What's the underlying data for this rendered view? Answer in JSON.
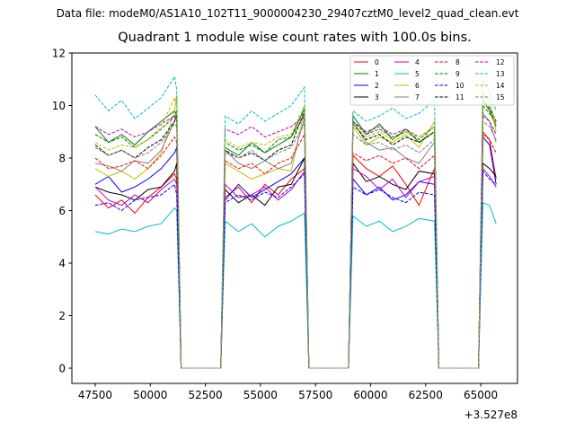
{
  "suptitle": "Data file: modeM0/AS1A10_102T11_9000004230_29407cztM0_level2_quad_clean.evt",
  "chart_data": {
    "type": "line",
    "title": "Quadrant 1 module wise count rates with 100.0s bins.",
    "xlabel": "",
    "ylabel": "",
    "x_offset_label": "+3.527e8",
    "xlim": [
      46440,
      66670
    ],
    "ylim": [
      -0.58,
      12.0
    ],
    "xticks": [
      47500,
      50000,
      52500,
      55000,
      57500,
      60000,
      62500,
      65000
    ],
    "yticks": [
      0,
      2,
      4,
      6,
      8,
      10,
      12
    ],
    "grid": false,
    "legend_placement": "top-right",
    "legend_columns": 4,
    "x": [
      47500,
      48100,
      48700,
      49300,
      49900,
      50500,
      51100,
      51200,
      51400,
      53200,
      53400,
      54000,
      54600,
      55200,
      55800,
      56400,
      57000,
      57200,
      59000,
      59200,
      59800,
      60400,
      61000,
      61600,
      62200,
      62900,
      63100,
      64900,
      65100,
      65400,
      65700
    ],
    "series": [
      {
        "name": "0",
        "color": "#ff0000",
        "dash": false,
        "values": [
          6.6,
          6.1,
          6.4,
          5.9,
          6.5,
          6.9,
          7.4,
          7.2,
          0,
          0,
          6.5,
          6.9,
          6.3,
          7.0,
          6.6,
          7.2,
          7.6,
          0,
          0,
          8.1,
          7.6,
          7.3,
          7.7,
          7.0,
          6.2,
          7.6,
          0,
          0,
          9.0,
          8.7,
          7.2
        ]
      },
      {
        "name": "1",
        "color": "#008000",
        "dash": false,
        "values": [
          9.2,
          8.6,
          8.9,
          8.5,
          9.0,
          9.4,
          9.8,
          9.6,
          0,
          0,
          8.4,
          8.1,
          8.6,
          8.2,
          8.5,
          8.8,
          9.9,
          0,
          0,
          9.6,
          8.9,
          9.3,
          8.7,
          9.1,
          8.6,
          9.0,
          0,
          0,
          10.2,
          9.8,
          9.2
        ]
      },
      {
        "name": "2",
        "color": "#0000ff",
        "dash": false,
        "values": [
          7.0,
          7.3,
          6.7,
          6.9,
          7.2,
          7.6,
          8.2,
          8.4,
          0,
          0,
          6.4,
          7.0,
          6.5,
          6.8,
          7.1,
          7.4,
          8.0,
          0,
          0,
          7.2,
          6.6,
          6.9,
          6.4,
          6.6,
          7.1,
          7.0,
          0,
          0,
          8.8,
          8.5,
          7.0
        ]
      },
      {
        "name": "3",
        "color": "#000000",
        "dash": false,
        "values": [
          6.9,
          6.7,
          6.6,
          6.4,
          6.8,
          6.9,
          7.5,
          7.8,
          0,
          0,
          6.8,
          6.3,
          6.6,
          6.2,
          6.9,
          7.0,
          8.0,
          0,
          0,
          7.8,
          7.1,
          7.3,
          7.0,
          6.8,
          7.5,
          7.4,
          0,
          0,
          7.8,
          7.6,
          7.3
        ]
      },
      {
        "name": "4",
        "color": "#bf00bf",
        "dash": false,
        "values": [
          6.9,
          6.4,
          6.2,
          6.6,
          6.3,
          6.8,
          7.2,
          7.0,
          0,
          0,
          7.0,
          6.5,
          6.6,
          6.9,
          6.4,
          6.8,
          7.5,
          0,
          0,
          7.6,
          7.3,
          6.8,
          7.2,
          6.5,
          7.1,
          7.3,
          0,
          0,
          7.6,
          7.3,
          6.9
        ]
      },
      {
        "name": "5",
        "color": "#00bfbf",
        "dash": false,
        "values": [
          5.2,
          5.1,
          5.3,
          5.2,
          5.4,
          5.5,
          6.1,
          6.0,
          0,
          0,
          5.6,
          5.2,
          5.5,
          5.0,
          5.4,
          5.6,
          5.9,
          0,
          0,
          5.8,
          5.4,
          5.6,
          5.2,
          5.4,
          5.7,
          5.6,
          0,
          0,
          6.3,
          6.2,
          5.5
        ]
      },
      {
        "name": "6",
        "color": "#bfbf00",
        "dash": false,
        "values": [
          7.6,
          7.3,
          7.5,
          7.2,
          7.6,
          8.2,
          9.8,
          10.4,
          0,
          0,
          7.8,
          7.5,
          7.2,
          7.4,
          7.6,
          7.5,
          9.8,
          0,
          0,
          9.2,
          8.5,
          8.8,
          8.6,
          8.9,
          8.4,
          9.4,
          0,
          0,
          10.5,
          10.2,
          9.0
        ]
      },
      {
        "name": "7",
        "color": "#808080",
        "dash": false,
        "values": [
          7.8,
          7.7,
          7.5,
          7.9,
          7.8,
          8.3,
          9.4,
          9.8,
          0,
          0,
          8.3,
          7.8,
          7.6,
          7.9,
          7.6,
          7.8,
          9.5,
          0,
          0,
          9.4,
          8.6,
          8.3,
          8.4,
          8.0,
          7.8,
          8.6,
          0,
          0,
          9.7,
          9.4,
          8.6
        ]
      },
      {
        "name": "8",
        "color": "#ff0000",
        "dash": true,
        "values": [
          8.0,
          7.6,
          7.7,
          7.9,
          7.6,
          8.1,
          8.8,
          8.6,
          0,
          0,
          7.9,
          7.6,
          7.8,
          7.4,
          7.8,
          8.0,
          8.9,
          0,
          0,
          8.2,
          7.9,
          8.1,
          7.8,
          8.0,
          7.6,
          8.1,
          0,
          0,
          8.9,
          8.7,
          8.2
        ]
      },
      {
        "name": "9",
        "color": "#008000",
        "dash": true,
        "values": [
          8.9,
          8.6,
          8.8,
          8.4,
          8.7,
          9.1,
          9.6,
          9.8,
          0,
          0,
          8.6,
          8.3,
          8.5,
          8.2,
          8.7,
          8.8,
          9.6,
          0,
          0,
          9.4,
          8.9,
          9.1,
          8.8,
          9.0,
          8.7,
          9.2,
          0,
          0,
          10.0,
          9.7,
          9.3
        ]
      },
      {
        "name": "10",
        "color": "#0000ff",
        "dash": true,
        "values": [
          6.2,
          6.3,
          6.0,
          6.4,
          6.5,
          6.6,
          7.0,
          6.6,
          0,
          0,
          6.3,
          6.6,
          6.4,
          6.7,
          6.5,
          6.9,
          7.4,
          0,
          0,
          6.9,
          6.6,
          6.8,
          6.5,
          6.3,
          6.7,
          6.6,
          0,
          0,
          7.5,
          7.2,
          7.0
        ]
      },
      {
        "name": "11",
        "color": "#000000",
        "dash": true,
        "values": [
          8.5,
          8.1,
          8.3,
          8.0,
          8.4,
          8.7,
          9.4,
          9.6,
          0,
          0,
          8.3,
          8.0,
          8.2,
          7.9,
          8.3,
          8.5,
          9.8,
          0,
          0,
          9.3,
          8.7,
          8.9,
          8.5,
          8.8,
          8.6,
          9.0,
          0,
          0,
          10.2,
          9.9,
          9.4
        ]
      },
      {
        "name": "12",
        "color": "#bf00bf",
        "dash": true,
        "values": [
          9.2,
          8.9,
          9.1,
          8.8,
          9.0,
          9.3,
          9.6,
          9.4,
          0,
          0,
          9.1,
          8.9,
          9.2,
          8.8,
          9.0,
          9.2,
          9.6,
          0,
          0,
          9.4,
          9.0,
          9.2,
          8.9,
          9.1,
          8.8,
          9.2,
          0,
          0,
          9.6,
          9.4,
          8.9
        ]
      },
      {
        "name": "13",
        "color": "#00bfbf",
        "dash": true,
        "values": [
          10.4,
          9.8,
          10.2,
          9.5,
          9.9,
          10.3,
          11.1,
          10.6,
          0,
          0,
          9.6,
          9.3,
          9.8,
          9.4,
          9.7,
          10.0,
          10.7,
          0,
          0,
          9.8,
          9.4,
          9.6,
          9.9,
          9.5,
          9.7,
          10.2,
          0,
          0,
          10.9,
          10.5,
          9.8
        ]
      },
      {
        "name": "14",
        "color": "#bfbf00",
        "dash": true,
        "values": [
          8.6,
          8.3,
          8.5,
          8.4,
          8.7,
          9.2,
          10.3,
          10.0,
          0,
          0,
          8.7,
          8.4,
          8.6,
          8.5,
          8.8,
          8.9,
          10.0,
          0,
          0,
          9.3,
          8.8,
          9.0,
          8.7,
          9.0,
          8.8,
          9.2,
          0,
          0,
          10.4,
          10.1,
          9.3
        ]
      },
      {
        "name": "15",
        "color": "#808080",
        "dash": true,
        "values": [
          8.4,
          8.1,
          8.3,
          8.0,
          8.2,
          8.6,
          9.3,
          9.2,
          0,
          0,
          8.2,
          8.0,
          8.3,
          7.9,
          8.2,
          8.4,
          9.3,
          0,
          0,
          8.9,
          8.5,
          8.6,
          8.3,
          8.5,
          8.2,
          8.7,
          0,
          0,
          9.4,
          9.2,
          8.7
        ]
      }
    ]
  }
}
